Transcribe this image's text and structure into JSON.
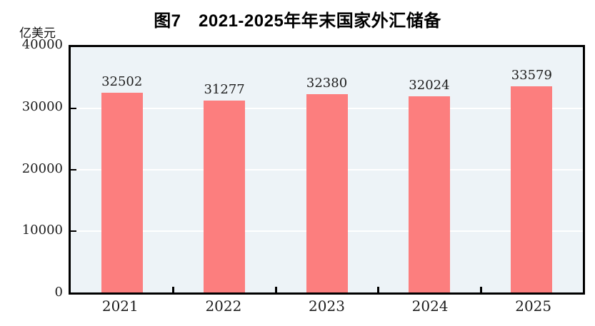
{
  "figure": {
    "title": "图7　2021-2025年年末国家外汇储备",
    "unit_label": "亿美元"
  },
  "chart_data": {
    "type": "bar",
    "title": "图7　2021-2025年年末国家外汇储备",
    "ylabel": "亿美元",
    "xlabel": "",
    "categories": [
      "2021",
      "2022",
      "2023",
      "2024",
      "2025"
    ],
    "values": [
      32502,
      31277,
      32380,
      32024,
      33579
    ],
    "value_labels": [
      "32502",
      "31277",
      "32380",
      "32024",
      "33579"
    ],
    "ytick_labels": [
      "40000",
      "30000",
      "20000",
      "10000",
      "0"
    ],
    "ylim": [
      0,
      40000
    ],
    "grid": "horizontal white gridlines at 10000, 20000, 30000",
    "legend": "none",
    "bar_color": "#FC7E7E",
    "plot_bg_color": "#EDF3F7",
    "border_color": "#000000",
    "gridline_color": "#FFFFFF"
  }
}
